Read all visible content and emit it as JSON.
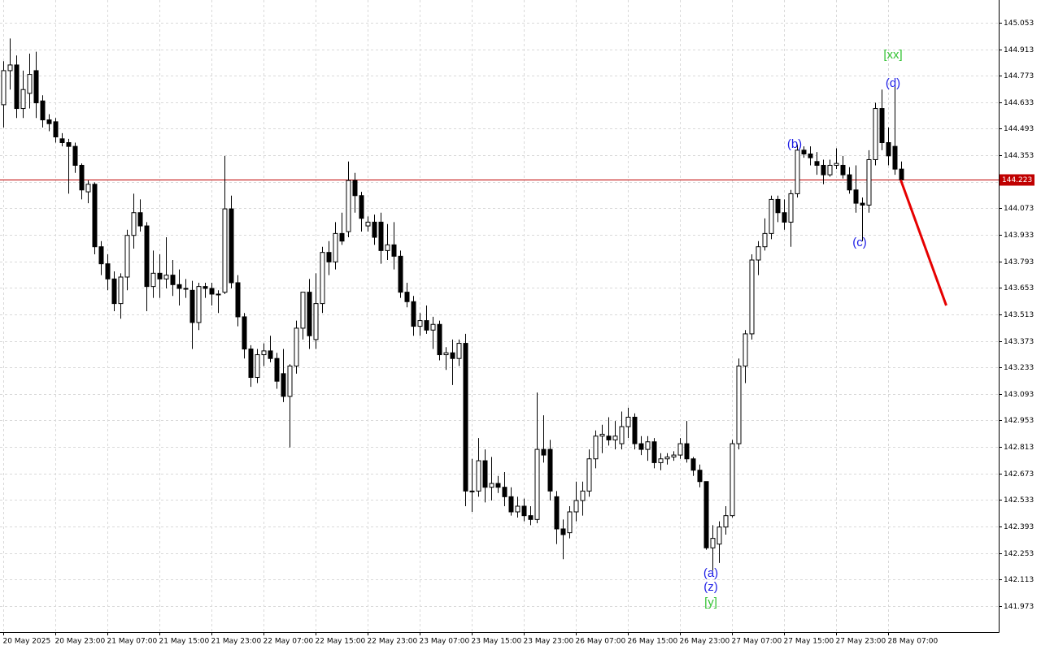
{
  "chart_data": {
    "type": "candlestick",
    "categories": [
      "20 May 2025",
      null,
      null,
      null,
      null,
      null,
      null,
      null,
      "20 May 23:00",
      null,
      null,
      null,
      null,
      null,
      null,
      null,
      "21 May 07:00",
      null,
      null,
      null,
      null,
      null,
      null,
      null,
      "21 May 15:00",
      null,
      null,
      null,
      null,
      null,
      null,
      null,
      "21 May 23:00",
      null,
      null,
      null,
      null,
      null,
      null,
      null,
      "22 May 07:00",
      null,
      null,
      null,
      null,
      null,
      null,
      null,
      "22 May 15:00",
      null,
      null,
      null,
      null,
      null,
      null,
      null,
      "22 May 23:00",
      null,
      null,
      null,
      null,
      null,
      null,
      null,
      "23 May 07:00",
      null,
      null,
      null,
      null,
      null,
      null,
      null,
      "23 May 15:00",
      null,
      null,
      null,
      null,
      null,
      null,
      null,
      "23 May 23:00",
      null,
      null,
      null,
      null,
      null,
      null,
      null,
      "26 May 07:00",
      null,
      null,
      null,
      null,
      null,
      null,
      null,
      "26 May 15:00",
      null,
      null,
      null,
      null,
      null,
      null,
      null,
      "26 May 23:00",
      null,
      null,
      null,
      null,
      null,
      null,
      null,
      "27 May 07:00",
      null,
      null,
      null,
      null,
      null,
      null,
      null,
      "27 May 15:00",
      null,
      null,
      null,
      null,
      null,
      null,
      null,
      "27 May 23:00",
      null,
      null,
      null,
      null,
      null,
      null,
      null,
      "28 May 07:00",
      null,
      null
    ],
    "open": [
      144.62,
      144.8,
      144.83,
      144.6,
      144.68,
      144.8,
      144.64,
      144.54,
      144.53,
      144.44,
      144.42,
      144.4,
      144.3,
      144.16,
      144.2,
      143.87,
      143.78,
      143.7,
      143.57,
      143.71,
      143.93,
      144.05,
      143.98,
      143.66,
      143.73,
      143.7,
      143.72,
      143.67,
      143.65,
      143.64,
      143.47,
      143.66,
      143.65,
      143.62,
      143.63,
      144.07,
      143.68,
      143.5,
      143.33,
      143.18,
      143.3,
      143.32,
      143.28,
      143.2,
      143.08,
      143.24,
      143.44,
      143.63,
      143.38,
      143.57,
      143.84,
      143.79,
      143.94,
      143.95,
      144.22,
      144.14,
      143.98,
      144.0,
      144.0,
      143.85,
      143.88,
      143.82,
      143.63,
      143.58,
      143.45,
      143.48,
      143.43,
      143.46,
      143.3,
      143.31,
      143.28,
      143.36,
      142.58,
      142.58,
      142.74,
      142.6,
      142.62,
      142.6,
      142.55,
      142.47,
      142.5,
      142.45,
      142.43,
      142.8,
      142.8,
      142.55,
      142.38,
      142.36,
      142.47,
      142.53,
      142.58,
      142.75,
      142.87,
      142.87,
      142.85,
      142.83,
      142.92,
      142.97,
      142.83,
      142.8,
      142.84,
      142.73,
      142.75,
      142.76,
      142.77,
      142.83,
      142.75,
      142.69,
      142.63,
      142.28,
      142.3,
      142.39,
      142.45,
      142.83,
      143.24,
      143.41,
      143.8,
      143.87,
      143.94,
      144.12,
      144.05,
      144.0,
      144.15,
      144.38,
      144.36,
      144.32,
      144.3,
      144.25,
      144.3,
      144.3,
      144.25,
      144.17,
      144.1,
      144.09,
      144.33,
      144.6,
      144.42,
      144.4,
      144.28
    ],
    "high": [
      144.85,
      144.97,
      144.88,
      144.8,
      144.89,
      144.9,
      144.67,
      144.57,
      144.55,
      144.47,
      144.44,
      144.42,
      144.31,
      144.22,
      144.21,
      143.9,
      143.83,
      143.74,
      143.73,
      143.96,
      144.15,
      144.12,
      144.0,
      143.85,
      143.83,
      143.92,
      143.8,
      143.75,
      143.7,
      143.69,
      143.68,
      143.68,
      143.68,
      143.64,
      144.35,
      144.14,
      143.72,
      143.52,
      143.35,
      143.33,
      143.36,
      143.4,
      143.31,
      143.33,
      143.25,
      143.48,
      143.63,
      143.7,
      143.73,
      143.87,
      143.9,
      144.0,
      144.05,
      144.32,
      144.26,
      144.16,
      144.03,
      144.04,
      144.05,
      143.99,
      144.0,
      143.85,
      143.68,
      143.61,
      143.52,
      143.56,
      143.5,
      143.48,
      143.34,
      143.38,
      143.38,
      143.41,
      142.75,
      142.86,
      142.8,
      142.76,
      142.66,
      142.68,
      142.6,
      142.55,
      142.54,
      142.5,
      143.1,
      142.98,
      142.85,
      142.58,
      142.43,
      142.5,
      142.63,
      142.63,
      142.8,
      142.9,
      142.93,
      142.97,
      142.95,
      143.0,
      143.02,
      142.99,
      142.87,
      142.87,
      142.86,
      142.78,
      142.78,
      142.79,
      142.86,
      142.95,
      142.76,
      142.72,
      142.63,
      142.4,
      142.42,
      142.5,
      142.85,
      143.28,
      143.43,
      143.83,
      143.9,
      144.02,
      144.14,
      144.14,
      144.12,
      144.17,
      144.41,
      144.4,
      144.4,
      144.37,
      144.33,
      144.33,
      144.39,
      144.35,
      144.29,
      144.3,
      144.13,
      144.38,
      144.63,
      144.7,
      144.5,
      144.75,
      144.32
    ],
    "low": [
      144.5,
      144.7,
      144.55,
      144.55,
      144.6,
      144.55,
      144.5,
      144.48,
      144.42,
      144.4,
      144.15,
      144.26,
      144.12,
      144.1,
      143.83,
      143.72,
      143.64,
      143.53,
      143.49,
      143.64,
      143.86,
      143.95,
      143.53,
      143.6,
      143.6,
      143.65,
      143.61,
      143.56,
      143.6,
      143.33,
      143.43,
      143.6,
      143.56,
      143.52,
      143.62,
      143.65,
      143.45,
      143.28,
      143.13,
      143.15,
      143.24,
      143.26,
      143.12,
      143.05,
      142.81,
      143.2,
      143.38,
      143.33,
      143.33,
      143.52,
      143.72,
      143.75,
      143.88,
      143.92,
      144.05,
      143.95,
      143.95,
      143.88,
      143.78,
      143.8,
      143.75,
      143.6,
      143.55,
      143.4,
      143.4,
      143.41,
      143.33,
      143.27,
      143.22,
      143.14,
      143.24,
      142.5,
      142.47,
      142.55,
      142.52,
      142.53,
      142.57,
      142.5,
      142.45,
      142.44,
      142.42,
      142.4,
      142.41,
      142.73,
      142.53,
      142.3,
      142.22,
      142.33,
      142.42,
      142.45,
      142.55,
      142.7,
      142.78,
      142.82,
      142.8,
      142.8,
      142.86,
      142.8,
      142.77,
      142.74,
      142.7,
      142.69,
      142.72,
      142.74,
      142.75,
      142.73,
      142.66,
      142.6,
      142.27,
      142.16,
      142.2,
      142.35,
      142.44,
      142.8,
      143.15,
      143.38,
      143.72,
      143.85,
      143.91,
      144.0,
      143.96,
      143.87,
      144.13,
      144.34,
      144.3,
      144.25,
      144.2,
      144.24,
      144.28,
      144.23,
      144.15,
      144.05,
      143.9,
      144.05,
      144.3,
      144.38,
      144.3,
      144.25,
      144.21
    ],
    "close": [
      144.8,
      144.83,
      144.6,
      144.7,
      144.78,
      144.63,
      144.54,
      144.52,
      144.45,
      144.42,
      144.4,
      144.3,
      144.17,
      144.2,
      143.87,
      143.78,
      143.7,
      143.57,
      143.71,
      143.93,
      144.05,
      143.98,
      143.66,
      143.73,
      143.7,
      143.72,
      143.67,
      143.65,
      143.65,
      143.47,
      143.66,
      143.65,
      143.62,
      143.62,
      144.07,
      143.68,
      143.5,
      143.33,
      143.18,
      143.3,
      143.32,
      143.28,
      143.16,
      143.08,
      143.24,
      143.44,
      143.63,
      143.4,
      143.57,
      143.84,
      143.79,
      143.94,
      143.9,
      144.22,
      144.14,
      144.02,
      144.0,
      143.92,
      143.85,
      143.88,
      143.82,
      143.63,
      143.58,
      143.45,
      143.48,
      143.43,
      143.46,
      143.3,
      143.31,
      143.28,
      143.36,
      142.58,
      142.58,
      142.74,
      142.6,
      142.62,
      142.6,
      142.55,
      142.47,
      142.5,
      142.45,
      142.43,
      142.8,
      142.77,
      142.58,
      142.38,
      142.35,
      142.47,
      142.53,
      142.58,
      142.75,
      142.87,
      142.88,
      142.85,
      142.87,
      142.92,
      142.97,
      142.83,
      142.8,
      142.84,
      142.73,
      142.75,
      142.76,
      142.77,
      142.83,
      142.75,
      142.69,
      142.63,
      142.28,
      142.33,
      142.39,
      142.45,
      142.83,
      143.24,
      143.41,
      143.8,
      143.87,
      143.94,
      144.12,
      144.05,
      144.0,
      144.15,
      144.38,
      144.36,
      144.34,
      144.3,
      144.25,
      144.3,
      144.31,
      144.25,
      144.17,
      144.1,
      144.09,
      144.33,
      144.6,
      144.42,
      144.35,
      144.28,
      144.223
    ],
    "bull_color": "#ffffff",
    "bear_color": "#000000",
    "ylim": [
      141.835,
      145.173
    ],
    "yticks": [
      141.973,
      142.113,
      142.253,
      142.393,
      142.533,
      142.673,
      142.813,
      142.953,
      143.093,
      143.233,
      143.373,
      143.513,
      143.653,
      143.793,
      143.933,
      144.073,
      144.213,
      144.353,
      144.493,
      144.633,
      144.773,
      144.913,
      145.053
    ],
    "grid": true,
    "bid": 144.223,
    "bid_color": "#c00000",
    "forecast": {
      "x": [
        138,
        145
      ],
      "y": [
        144.223,
        143.56
      ],
      "color": "#e60000"
    },
    "annotations": [
      {
        "text": "(a)",
        "color": "#1e1ee6"
      },
      {
        "text": "(z)",
        "color": "#1e1ee6"
      },
      {
        "text": "[y]",
        "color": "#33c233"
      },
      {
        "text": "(b)",
        "color": "#1e1ee6"
      },
      {
        "text": "(c)",
        "color": "#1e1ee6"
      },
      {
        "text": "(d)",
        "color": "#1e1ee6"
      },
      {
        "text": "[xx]",
        "color": "#33c233"
      }
    ]
  }
}
